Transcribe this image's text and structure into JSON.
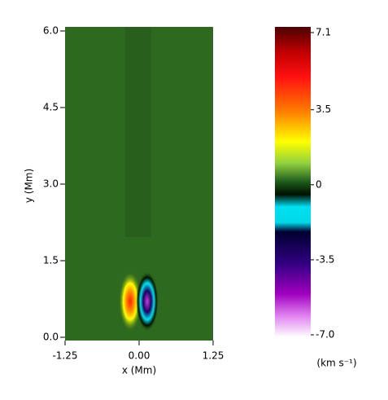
{
  "chart_data": {
    "type": "heatmap",
    "xlabel": "x (Mm)",
    "ylabel": "y (Mm)",
    "xlim": [
      -1.25,
      1.25
    ],
    "xticks": [
      -1.25,
      {
        "value": 0,
        "label": "0.00"
      },
      1.25
    ],
    "ylim": [
      0,
      6
    ],
    "yticks": [
      {
        "value": 0,
        "label": "0.0"
      },
      1.5,
      {
        "value": 3,
        "label": "3.0"
      },
      4.5,
      {
        "value": 6,
        "label": "6.0"
      }
    ],
    "colorbar": {
      "label": "(km s⁻¹)",
      "clim": [
        -7,
        7.1
      ],
      "ticks": [
        7.1,
        3.5,
        0,
        -3.5,
        {
          "value": -7,
          "label": "-7.0"
        }
      ]
    }
  }
}
